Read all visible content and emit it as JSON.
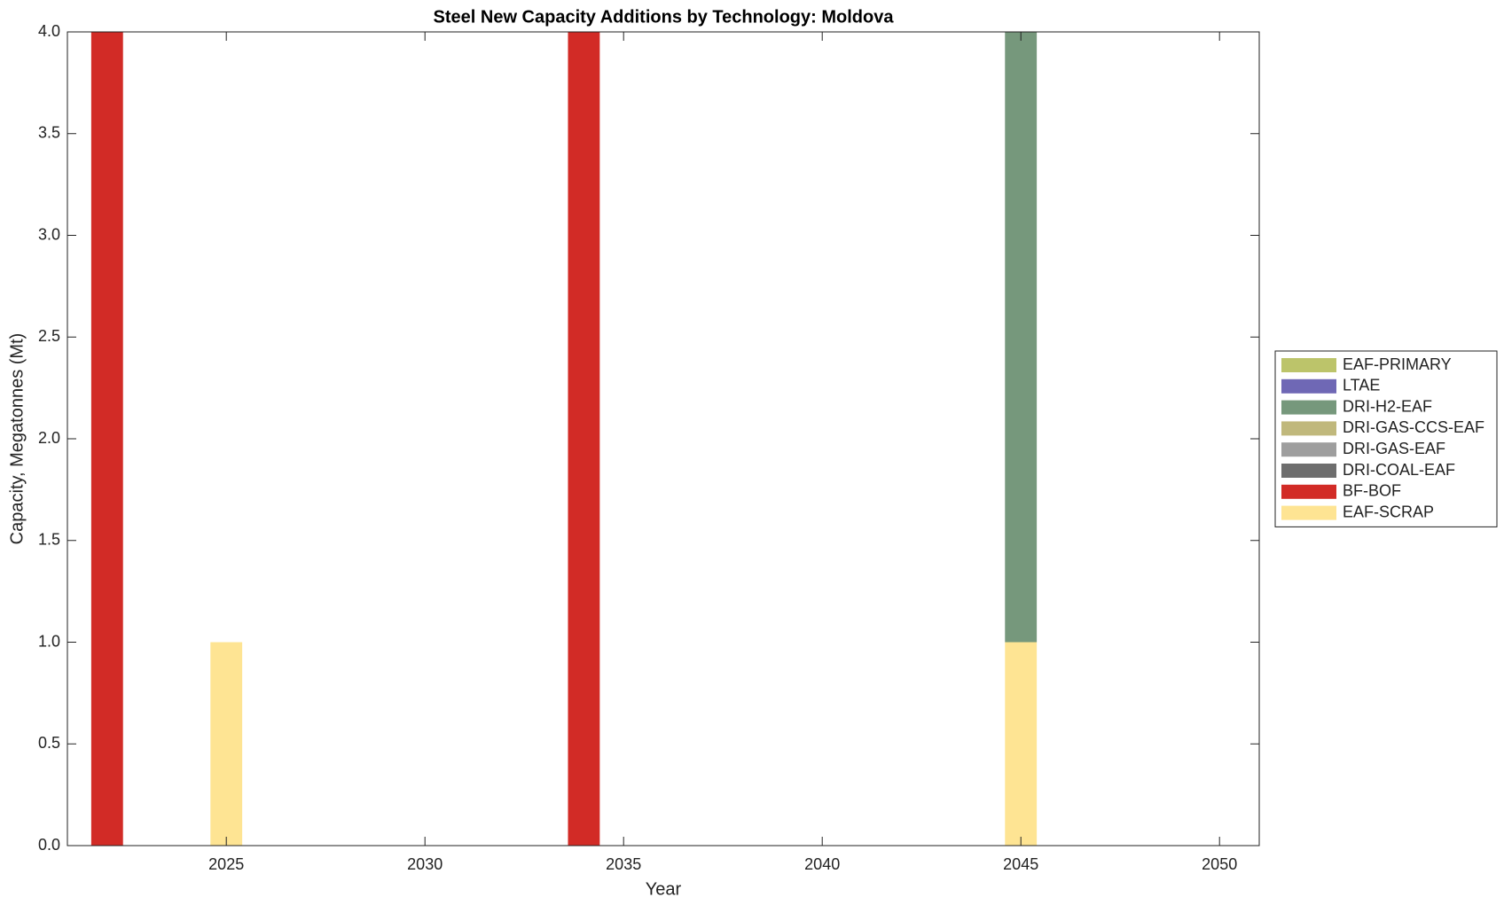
{
  "chart_data": {
    "type": "bar",
    "stacked": true,
    "title": "Steel New Capacity Additions by Technology: Moldova",
    "x_label": "Year",
    "y_label": "Capacity, Megatonnes (Mt)",
    "x": [
      2022,
      2025,
      2034,
      2045
    ],
    "series": [
      {
        "name": "EAF-PRIMARY",
        "color": "#bcc46a",
        "values": [
          0,
          0,
          0,
          0
        ]
      },
      {
        "name": "LTAE",
        "color": "#6f68b5",
        "values": [
          0,
          0,
          0,
          0
        ]
      },
      {
        "name": "DRI-H2-EAF",
        "color": "#76987c",
        "values": [
          0,
          0,
          0,
          3
        ]
      },
      {
        "name": "DRI-GAS-CCS-EAF",
        "color": "#c0b87c",
        "values": [
          0,
          0,
          0,
          0
        ]
      },
      {
        "name": "DRI-GAS-EAF",
        "color": "#9e9e9e",
        "values": [
          0,
          0,
          0,
          0
        ]
      },
      {
        "name": "DRI-COAL-EAF",
        "color": "#6e6e6e",
        "values": [
          0,
          0,
          0,
          0
        ]
      },
      {
        "name": "BF-BOF",
        "color": "#d22b26",
        "values": [
          4,
          0,
          4,
          0
        ]
      },
      {
        "name": "EAF-SCRAP",
        "color": "#fee493",
        "values": [
          0,
          1,
          0,
          1
        ]
      }
    ],
    "xlim": [
      2021,
      2051
    ],
    "xticks": [
      2025,
      2030,
      2035,
      2040,
      2045,
      2050
    ],
    "ylim": [
      0,
      4
    ],
    "yticks": [
      {
        "value": 0,
        "label": "0.0"
      },
      0.5,
      {
        "value": 1,
        "label": "1.0"
      },
      1.5,
      {
        "value": 2,
        "label": "2.0"
      },
      2.5,
      {
        "value": 3,
        "label": "3.0"
      },
      3.5,
      {
        "value": 4,
        "label": "4.0"
      }
    ],
    "legend": "right"
  }
}
